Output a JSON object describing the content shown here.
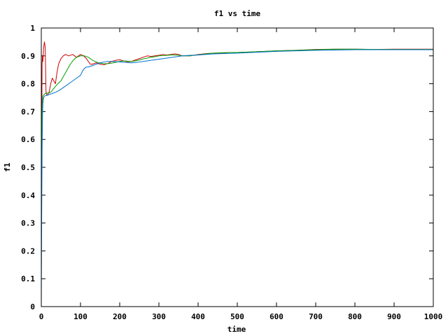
{
  "chart_data": {
    "type": "line",
    "title": "f1 vs time",
    "xlabel": "time",
    "ylabel": "f1",
    "xlim": [
      0,
      1000
    ],
    "ylim": [
      0,
      1
    ],
    "xticks": [
      0,
      100,
      200,
      300,
      400,
      500,
      600,
      700,
      800,
      900,
      1000
    ],
    "yticks": [
      0,
      0.1,
      0.2,
      0.3,
      0.4,
      0.5,
      0.6,
      0.7,
      0.8,
      0.9,
      1
    ],
    "ytick_labels": [
      "0",
      "0.1",
      "0.2",
      "0.3",
      "0.4",
      "0.5",
      "0.6",
      "0.7",
      "0.8",
      "0.9",
      "1"
    ],
    "grid": false,
    "legend": "none",
    "series": [
      {
        "name": "red",
        "color": "#cc0000",
        "x": [
          0,
          1,
          2,
          3,
          4,
          6,
          8,
          10,
          12,
          14,
          16,
          20,
          24,
          28,
          32,
          36,
          40,
          44,
          50,
          56,
          62,
          70,
          80,
          90,
          100,
          108,
          115,
          120,
          125,
          130,
          140,
          150,
          160,
          170,
          180,
          190,
          200,
          210,
          220,
          230,
          240,
          250,
          260,
          270,
          280,
          290,
          300,
          310,
          320,
          330,
          340,
          350,
          360,
          370,
          380,
          400,
          420,
          440,
          460,
          480,
          500,
          550,
          600,
          650,
          700,
          750,
          800,
          850,
          900,
          950,
          1000
        ],
        "y": [
          0.33,
          0.6,
          0.87,
          0.9,
          0.88,
          0.93,
          0.95,
          0.93,
          0.77,
          0.76,
          0.76,
          0.77,
          0.8,
          0.82,
          0.81,
          0.8,
          0.84,
          0.87,
          0.89,
          0.9,
          0.905,
          0.9,
          0.905,
          0.895,
          0.905,
          0.9,
          0.89,
          0.88,
          0.87,
          0.87,
          0.875,
          0.87,
          0.868,
          0.873,
          0.88,
          0.884,
          0.886,
          0.882,
          0.879,
          0.88,
          0.885,
          0.89,
          0.895,
          0.9,
          0.898,
          0.9,
          0.902,
          0.905,
          0.903,
          0.905,
          0.907,
          0.905,
          0.9,
          0.9,
          0.9,
          0.905,
          0.908,
          0.91,
          0.91,
          0.912,
          0.912,
          0.915,
          0.918,
          0.92,
          0.923,
          0.924,
          0.924,
          0.923,
          0.924,
          0.924,
          0.924
        ]
      },
      {
        "name": "green",
        "color": "#00a000",
        "x": [
          0,
          1,
          2,
          3,
          4,
          6,
          8,
          10,
          14,
          18,
          22,
          26,
          30,
          36,
          42,
          50,
          58,
          66,
          74,
          82,
          90,
          100,
          110,
          120,
          130,
          140,
          150,
          160,
          170,
          180,
          190,
          200,
          210,
          220,
          230,
          240,
          250,
          260,
          270,
          280,
          290,
          300,
          310,
          320,
          330,
          340,
          350,
          360,
          370,
          380,
          400,
          420,
          440,
          460,
          480,
          500,
          550,
          600,
          650,
          700,
          750,
          800,
          850,
          900,
          950,
          1000
        ],
        "y": [
          0.33,
          0.55,
          0.7,
          0.74,
          0.755,
          0.76,
          0.762,
          0.765,
          0.766,
          0.767,
          0.768,
          0.772,
          0.78,
          0.79,
          0.8,
          0.81,
          0.83,
          0.85,
          0.87,
          0.885,
          0.895,
          0.9,
          0.9,
          0.895,
          0.885,
          0.878,
          0.874,
          0.872,
          0.872,
          0.874,
          0.877,
          0.88,
          0.882,
          0.881,
          0.88,
          0.882,
          0.885,
          0.889,
          0.892,
          0.895,
          0.897,
          0.9,
          0.901,
          0.902,
          0.903,
          0.903,
          0.902,
          0.9,
          0.9,
          0.9,
          0.904,
          0.907,
          0.91,
          0.911,
          0.912,
          0.912,
          0.915,
          0.918,
          0.92,
          0.922,
          0.924,
          0.924,
          0.923,
          0.923,
          0.923,
          0.923
        ]
      },
      {
        "name": "blue",
        "color": "#0070d0",
        "x": [
          0,
          1,
          2,
          3,
          4,
          6,
          8,
          10,
          14,
          18,
          22,
          26,
          30,
          36,
          42,
          50,
          60,
          70,
          80,
          90,
          100,
          105,
          110,
          115,
          120,
          130,
          140,
          150,
          160,
          170,
          180,
          190,
          200,
          210,
          220,
          230,
          240,
          250,
          260,
          270,
          280,
          290,
          300,
          320,
          340,
          360,
          380,
          400,
          420,
          440,
          460,
          480,
          500,
          550,
          600,
          650,
          700,
          750,
          800,
          850,
          900,
          950,
          1000
        ],
        "y": [
          0.0,
          0.33,
          0.55,
          0.68,
          0.73,
          0.75,
          0.755,
          0.757,
          0.758,
          0.76,
          0.762,
          0.764,
          0.766,
          0.769,
          0.773,
          0.78,
          0.79,
          0.8,
          0.81,
          0.82,
          0.83,
          0.845,
          0.855,
          0.86,
          0.86,
          0.865,
          0.87,
          0.875,
          0.878,
          0.88,
          0.88,
          0.879,
          0.878,
          0.877,
          0.876,
          0.875,
          0.876,
          0.878,
          0.88,
          0.882,
          0.884,
          0.886,
          0.888,
          0.892,
          0.896,
          0.9,
          0.902,
          0.903,
          0.905,
          0.907,
          0.908,
          0.909,
          0.91,
          0.913,
          0.916,
          0.918,
          0.92,
          0.921,
          0.922,
          0.922,
          0.922,
          0.922,
          0.922
        ]
      }
    ]
  }
}
